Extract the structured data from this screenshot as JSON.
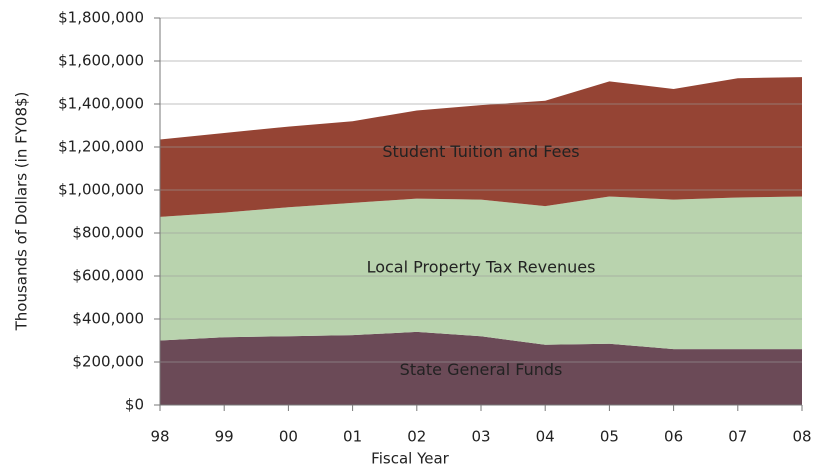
{
  "chart_data": {
    "type": "stacked_area",
    "xlabel": "Fiscal Year",
    "ylabel": "Thousands of Dollars (in FY08$)",
    "categories": [
      "98",
      "99",
      "00",
      "01",
      "02",
      "03",
      "04",
      "05",
      "06",
      "07",
      "08"
    ],
    "series": [
      {
        "name": "State General Funds",
        "color": "#6b4a57",
        "values": [
          300000,
          315000,
          320000,
          325000,
          340000,
          320000,
          280000,
          285000,
          260000,
          260000,
          260000
        ]
      },
      {
        "name": "Local Property Tax Revenues",
        "color": "#b9d3ae",
        "values": [
          575000,
          580000,
          600000,
          615000,
          620000,
          635000,
          645000,
          685000,
          695000,
          705000,
          710000
        ]
      },
      {
        "name": "Student Tuition and Fees",
        "color": "#954434",
        "values": [
          360000,
          370000,
          375000,
          380000,
          410000,
          440000,
          490000,
          535000,
          515000,
          555000,
          555000
        ]
      }
    ],
    "ylim": [
      0,
      1800000
    ],
    "yticks": [
      {
        "value": 0,
        "label": "$0"
      },
      {
        "value": 200000,
        "label": "$200,000"
      },
      {
        "value": 400000,
        "label": "$400,000"
      },
      {
        "value": 600000,
        "label": "$600,000"
      },
      {
        "value": 800000,
        "label": "$800,000"
      },
      {
        "value": 1000000,
        "label": "$1,000,000"
      },
      {
        "value": 1200000,
        "label": "$1,200,000"
      },
      {
        "value": 1400000,
        "label": "$1,400,000"
      },
      {
        "value": 1600000,
        "label": "$1,600,000"
      },
      {
        "value": 1800000,
        "label": "$1,800,000"
      }
    ],
    "grid": true
  }
}
